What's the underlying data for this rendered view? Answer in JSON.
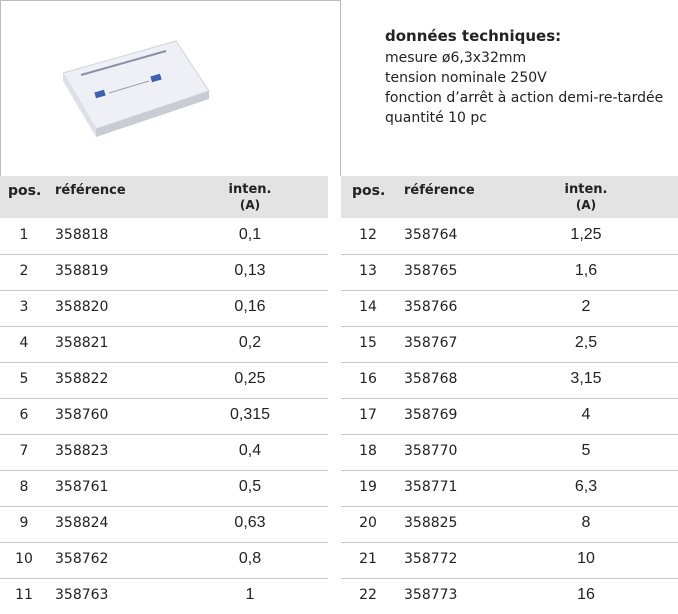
{
  "spec": {
    "title": "données techniques:",
    "lines": [
      "mesure ø6,3x32mm",
      "tension nominale 250V",
      "fonction d’arrêt à action demi-re-tardée",
      "quantité 10 pc"
    ]
  },
  "headers": {
    "pos": "pos.",
    "reference": "référence",
    "current": "inten.",
    "unit": "(A)"
  },
  "tables": [
    {
      "rows": [
        [
          "1",
          "358818",
          "0,1"
        ],
        [
          "2",
          "358819",
          "0,13"
        ],
        [
          "3",
          "358820",
          "0,16"
        ],
        [
          "4",
          "358821",
          "0,2"
        ],
        [
          "5",
          "358822",
          "0,25"
        ],
        [
          "6",
          "358760",
          "0,315"
        ],
        [
          "7",
          "358823",
          "0,4"
        ],
        [
          "8",
          "358761",
          "0,5"
        ],
        [
          "9",
          "358824",
          "0,63"
        ],
        [
          "10",
          "358762",
          "0,8"
        ],
        [
          "11",
          "358763",
          "1"
        ]
      ]
    },
    {
      "rows": [
        [
          "12",
          "358764",
          "1,25"
        ],
        [
          "13",
          "358765",
          "1,6"
        ],
        [
          "14",
          "358766",
          "2"
        ],
        [
          "15",
          "358767",
          "2,5"
        ],
        [
          "16",
          "358768",
          "3,15"
        ],
        [
          "17",
          "358769",
          "4"
        ],
        [
          "18",
          "358770",
          "5"
        ],
        [
          "19",
          "358771",
          "6,3"
        ],
        [
          "20",
          "358825",
          "8"
        ],
        [
          "21",
          "358772",
          "10"
        ],
        [
          "22",
          "358773",
          "16"
        ]
      ]
    }
  ]
}
